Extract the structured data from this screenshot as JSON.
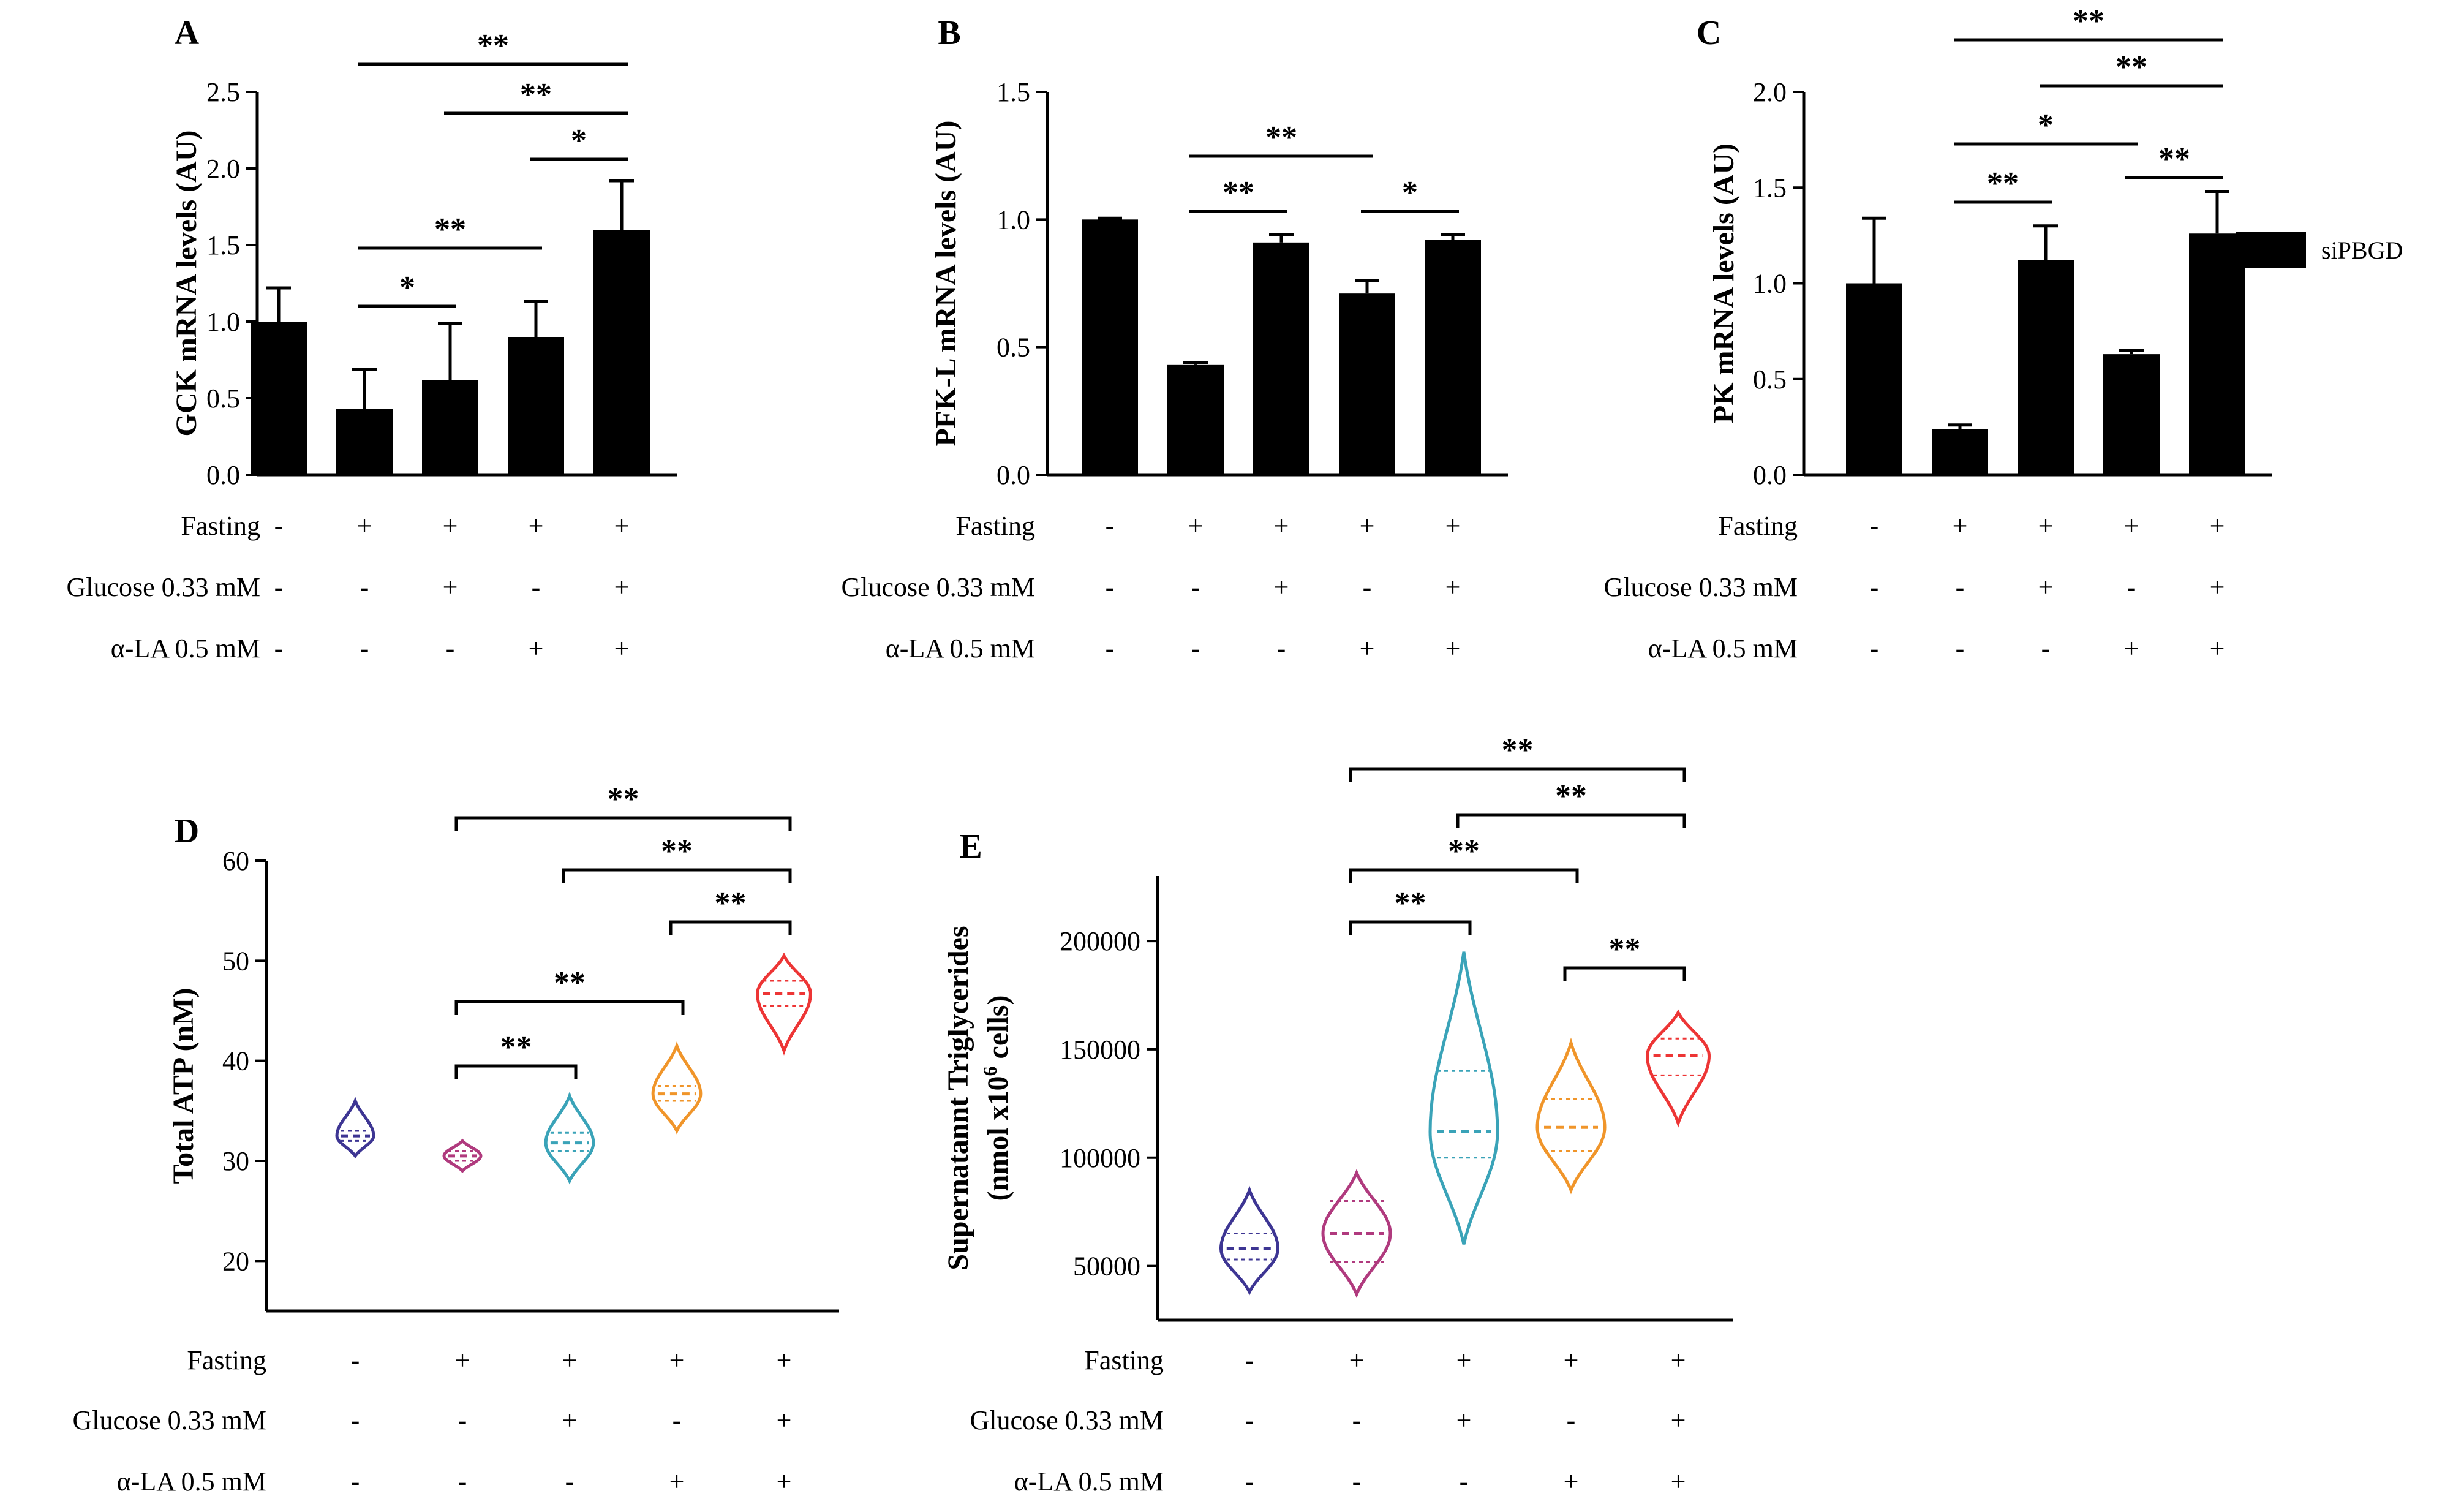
{
  "conditions": {
    "rows": [
      "Fasting",
      "Glucose 0.33 mM",
      "α-LA 0.5 mM"
    ],
    "fasting": [
      "-",
      "+",
      "+",
      "+",
      "+"
    ],
    "glucose": [
      "-",
      "-",
      "+",
      "-",
      "+"
    ],
    "ala": [
      "-",
      "-",
      "-",
      "+",
      "+"
    ]
  },
  "legend": {
    "label": "siPBGD",
    "color": "#000000"
  },
  "chart_data": [
    {
      "panel": "A",
      "type": "bar",
      "ylabel": "GCK mRNA levels (AU)",
      "ylim": [
        0,
        2.5
      ],
      "yticks": [
        "0.0",
        "0.5",
        "1.0",
        "1.5",
        "2.0",
        "2.5"
      ],
      "values": [
        1.0,
        0.43,
        0.62,
        0.9,
        1.6
      ],
      "errors": [
        0.22,
        0.26,
        0.37,
        0.23,
        0.32
      ],
      "significance": [
        {
          "from": 1,
          "to": 4,
          "label": "**"
        },
        {
          "from": 2,
          "to": 4,
          "label": "**"
        },
        {
          "from": 3,
          "to": 4,
          "label": "*"
        },
        {
          "from": 1,
          "to": 3,
          "label": "**"
        },
        {
          "from": 1,
          "to": 2,
          "label": "*"
        }
      ]
    },
    {
      "panel": "B",
      "type": "bar",
      "ylabel": "PFK-L mRNA levels (AU)",
      "ylim": [
        0,
        1.5
      ],
      "yticks": [
        "0.0",
        "0.5",
        "1.0",
        "1.5"
      ],
      "values": [
        1.0,
        0.43,
        0.91,
        0.71,
        0.92
      ],
      "errors": [
        0.005,
        0.01,
        0.03,
        0.05,
        0.02
      ],
      "significance": [
        {
          "from": 1,
          "to": 3,
          "label": "**"
        },
        {
          "from": 1,
          "to": 2,
          "label": "**"
        },
        {
          "from": 3,
          "to": 4,
          "label": "*"
        }
      ]
    },
    {
      "panel": "C",
      "type": "bar",
      "ylabel": "PK mRNA levels (AU)",
      "ylim": [
        0,
        2.0
      ],
      "yticks": [
        "0.0",
        "0.5",
        "1.0",
        "1.5",
        "2.0"
      ],
      "values": [
        1.0,
        0.24,
        1.12,
        0.63,
        1.26
      ],
      "errors": [
        0.34,
        0.02,
        0.18,
        0.02,
        0.22
      ],
      "significance": [
        {
          "from": 1,
          "to": 4,
          "label": "**"
        },
        {
          "from": 2,
          "to": 4,
          "label": "**"
        },
        {
          "from": 1,
          "to": 3,
          "label": "*"
        },
        {
          "from": 1,
          "to": 2,
          "label": "**"
        },
        {
          "from": 3,
          "to": 4,
          "label": "**"
        }
      ]
    },
    {
      "panel": "D",
      "type": "violin",
      "ylabel": "Total ATP (nM)",
      "ylim": [
        15,
        60
      ],
      "yticks": [
        "20",
        "30",
        "40",
        "50",
        "60"
      ],
      "series": [
        {
          "median": 32.5,
          "q1": 32.0,
          "q3": 33.0,
          "min": 30.5,
          "max": 36.0,
          "color": "#3d3593"
        },
        {
          "median": 30.5,
          "q1": 30.0,
          "q3": 31.0,
          "min": 29.0,
          "max": 32.0,
          "color": "#b03a7e"
        },
        {
          "median": 31.8,
          "q1": 31.0,
          "q3": 32.8,
          "min": 28.0,
          "max": 36.5,
          "color": "#3aa3b8"
        },
        {
          "median": 36.7,
          "q1": 36.0,
          "q3": 37.5,
          "min": 33.0,
          "max": 41.5,
          "color": "#f0952a"
        },
        {
          "median": 46.7,
          "q1": 45.5,
          "q3": 48.0,
          "min": 41.0,
          "max": 50.5,
          "color": "#ed3535"
        }
      ],
      "significance": [
        {
          "from": 1,
          "to": 4,
          "label": "**"
        },
        {
          "from": 2,
          "to": 4,
          "label": "**"
        },
        {
          "from": 3,
          "to": 4,
          "label": "**"
        },
        {
          "from": 1,
          "to": 3,
          "label": "**"
        },
        {
          "from": 1,
          "to": 2,
          "label": "**"
        }
      ]
    },
    {
      "panel": "E",
      "type": "violin",
      "ylabel": "Supernatannt Triglycerides",
      "ylabel2": "(nmol x10",
      "ylabel2_sup": "6",
      "ylabel2_tail": " cells)",
      "ylim": [
        25000,
        230000
      ],
      "yticks": [
        "50000",
        "100000",
        "150000",
        "200000"
      ],
      "series": [
        {
          "median": 58000,
          "q1": 53000,
          "q3": 65000,
          "min": 38000,
          "max": 85000,
          "color": "#3d3593"
        },
        {
          "median": 65000,
          "q1": 52000,
          "q3": 80000,
          "min": 37000,
          "max": 93000,
          "color": "#b03a7e"
        },
        {
          "median": 112000,
          "q1": 100000,
          "q3": 140000,
          "min": 60000,
          "max": 195000,
          "color": "#3aa3b8"
        },
        {
          "median": 114000,
          "q1": 103000,
          "q3": 127000,
          "min": 85000,
          "max": 153000,
          "color": "#f0952a"
        },
        {
          "median": 147000,
          "q1": 138000,
          "q3": 155000,
          "min": 116000,
          "max": 167000,
          "color": "#ed3535"
        }
      ],
      "significance": [
        {
          "from": 1,
          "to": 4,
          "label": "**"
        },
        {
          "from": 2,
          "to": 4,
          "label": "**"
        },
        {
          "from": 1,
          "to": 3,
          "label": "**"
        },
        {
          "from": 1,
          "to": 2,
          "label": "**"
        },
        {
          "from": 3,
          "to": 4,
          "label": "**"
        }
      ]
    }
  ]
}
